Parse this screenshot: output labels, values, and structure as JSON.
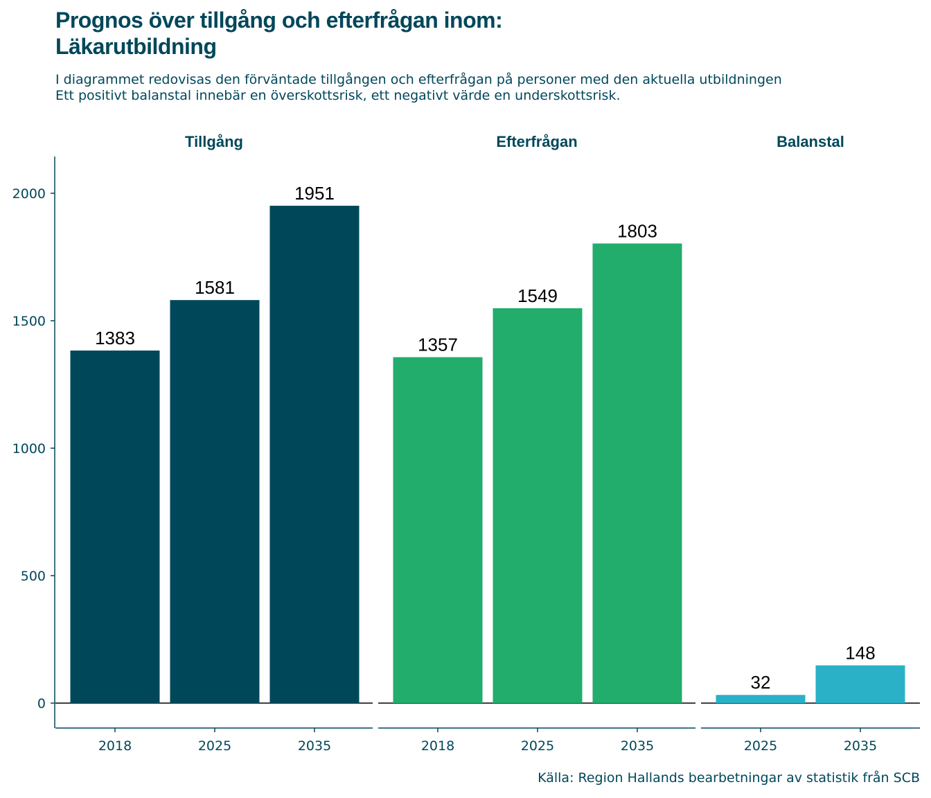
{
  "title_line1": "Prognos över tillgång och efterfrågan inom:",
  "title_line2": "Läkarutbildning",
  "subtitle_line1": "I diagrammet redovisas den förväntade tillgången och efterfrågan på personer med den aktuella utbildningen",
  "subtitle_line2": "Ett positivt balanstal innebär en överskottsrisk, ett negativt värde en underskottsrisk.",
  "caption": "Källa: Region Hallands bearbetningar av statistik från SCB",
  "chart_data": {
    "type": "bar",
    "ylim": [
      -100,
      2150
    ],
    "yticks": [
      0,
      500,
      1000,
      1500,
      2000
    ],
    "grid": false,
    "legend": "none",
    "panels": [
      {
        "name": "Tillgång",
        "color": "#00475a",
        "categories": [
          "2018",
          "2025",
          "2035"
        ],
        "values": [
          1383,
          1581,
          1951
        ]
      },
      {
        "name": "Efterfrågan",
        "color": "#22ad6c",
        "categories": [
          "2018",
          "2025",
          "2035"
        ],
        "values": [
          1357,
          1549,
          1803
        ]
      },
      {
        "name": "Balanstal",
        "color": "#2ab1c7",
        "categories": [
          "2025",
          "2035"
        ],
        "values": [
          32,
          148
        ]
      }
    ]
  }
}
